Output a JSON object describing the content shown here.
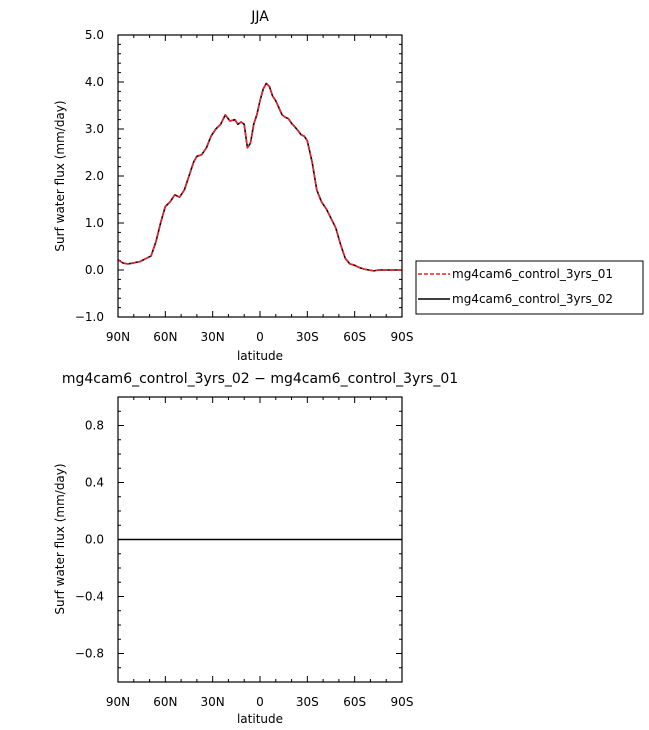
{
  "chart_data": [
    {
      "type": "line",
      "title": "JJA",
      "xlabel": "latitude",
      "ylabel": "Surf water flux (mm/day)",
      "xlim": [
        90,
        -90
      ],
      "ylim": [
        -1.0,
        5.0
      ],
      "x_ticks": [
        90,
        60,
        30,
        0,
        -30,
        -60,
        -90
      ],
      "x_tick_labels": [
        "90N",
        "60N",
        "30N",
        "0",
        "30S",
        "60S",
        "90S"
      ],
      "y_ticks": [
        -1.0,
        0.0,
        1.0,
        2.0,
        3.0,
        4.0,
        5.0
      ],
      "y_tick_labels": [
        "−1.0",
        "0.0",
        "1.0",
        "2.0",
        "3.0",
        "4.0",
        "5.0"
      ],
      "legend_position": "right",
      "x": [
        90,
        87,
        84,
        80,
        76,
        72,
        69,
        66,
        63,
        60,
        57,
        54,
        51,
        48,
        45,
        42,
        40,
        37,
        34,
        31,
        28,
        25,
        22,
        19,
        16,
        14,
        12,
        10,
        8,
        6,
        4,
        2,
        0,
        -2,
        -4,
        -6,
        -8,
        -10,
        -12,
        -14,
        -16,
        -18,
        -20,
        -22,
        -24,
        -26,
        -28,
        -30,
        -33,
        -36,
        -39,
        -42,
        -45,
        -48,
        -51,
        -54,
        -57,
        -60,
        -63,
        -66,
        -69,
        -72,
        -75,
        -78,
        -81,
        -84,
        -87,
        -90
      ],
      "series": [
        {
          "name": "mg4cam6_control_3yrs_01",
          "color": "#e8202a",
          "dash": "dashed",
          "values": [
            0.22,
            0.15,
            0.13,
            0.15,
            0.18,
            0.25,
            0.3,
            0.6,
            1.0,
            1.35,
            1.45,
            1.6,
            1.55,
            1.7,
            2.0,
            2.3,
            2.42,
            2.45,
            2.6,
            2.85,
            3.0,
            3.1,
            3.3,
            3.17,
            3.2,
            3.1,
            3.15,
            3.1,
            2.6,
            2.7,
            3.1,
            3.3,
            3.6,
            3.85,
            3.97,
            3.9,
            3.7,
            3.6,
            3.45,
            3.3,
            3.25,
            3.22,
            3.12,
            3.05,
            2.97,
            2.88,
            2.85,
            2.75,
            2.3,
            1.7,
            1.45,
            1.3,
            1.1,
            0.9,
            0.55,
            0.25,
            0.13,
            0.1,
            0.05,
            0.02,
            0.0,
            -0.02,
            0.0,
            0.0,
            0.0,
            0.0,
            0.0,
            0.0
          ]
        },
        {
          "name": "mg4cam6_control_3yrs_02",
          "color": "#000000",
          "dash": "solid",
          "values": [
            0.22,
            0.15,
            0.13,
            0.15,
            0.18,
            0.25,
            0.3,
            0.6,
            1.0,
            1.35,
            1.45,
            1.6,
            1.55,
            1.7,
            2.0,
            2.3,
            2.42,
            2.45,
            2.6,
            2.85,
            3.0,
            3.1,
            3.3,
            3.17,
            3.2,
            3.1,
            3.15,
            3.1,
            2.6,
            2.7,
            3.1,
            3.3,
            3.6,
            3.85,
            3.97,
            3.9,
            3.7,
            3.6,
            3.45,
            3.3,
            3.25,
            3.22,
            3.12,
            3.05,
            2.97,
            2.88,
            2.85,
            2.75,
            2.3,
            1.7,
            1.45,
            1.3,
            1.1,
            0.9,
            0.55,
            0.25,
            0.13,
            0.1,
            0.05,
            0.02,
            0.0,
            -0.02,
            0.0,
            0.0,
            0.0,
            0.0,
            0.0,
            0.0
          ]
        }
      ]
    },
    {
      "type": "line",
      "title": "mg4cam6_control_3yrs_02 − mg4cam6_control_3yrs_01",
      "xlabel": "latitude",
      "ylabel": "Surf water flux (mm/day)",
      "xlim": [
        90,
        -90
      ],
      "ylim": [
        -1.0,
        1.0
      ],
      "x_ticks": [
        90,
        60,
        30,
        0,
        -30,
        -60,
        -90
      ],
      "x_tick_labels": [
        "90N",
        "60N",
        "30N",
        "0",
        "30S",
        "60S",
        "90S"
      ],
      "y_ticks": [
        -0.8,
        -0.4,
        0.0,
        0.4,
        0.8
      ],
      "y_tick_labels": [
        "−0.8",
        "−0.4",
        "0.0",
        "0.4",
        "0.8"
      ],
      "x": [
        90,
        -90
      ],
      "series": [
        {
          "color": "#000000",
          "dash": "solid",
          "values": [
            0.0,
            0.0
          ]
        }
      ]
    }
  ]
}
